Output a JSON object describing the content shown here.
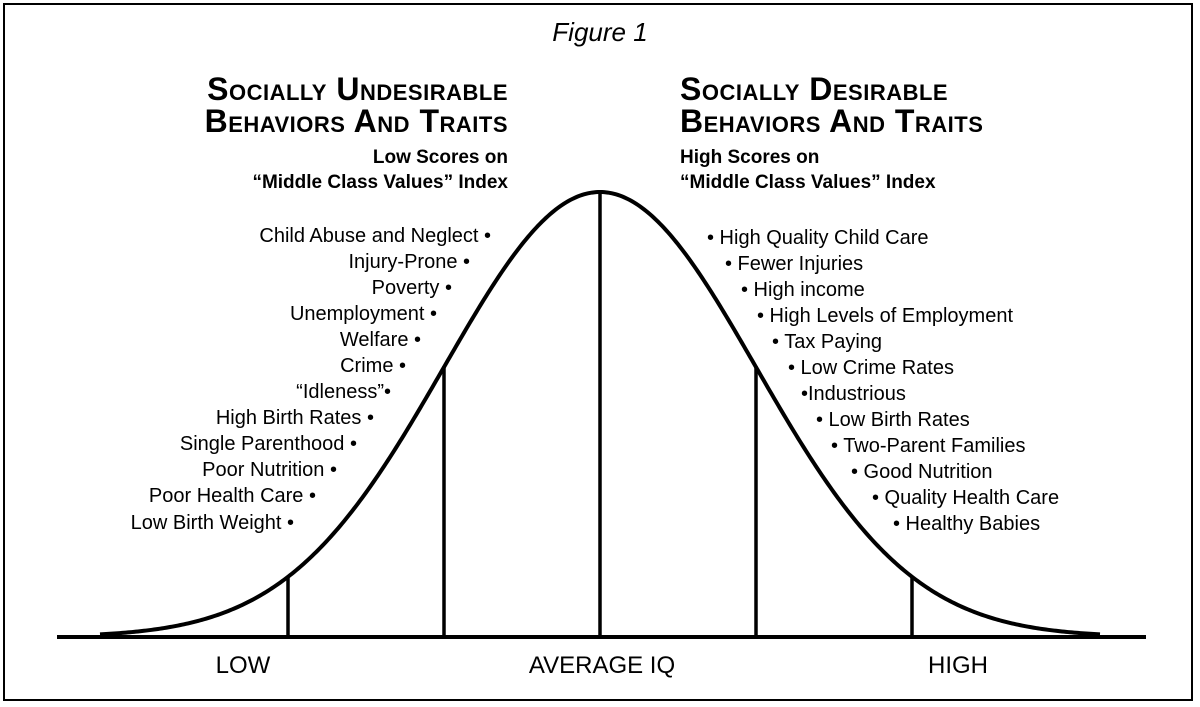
{
  "figure_title": "Figure 1",
  "left_heading": {
    "line1": "Socially Undesirable",
    "line2": "Behaviors And Traits",
    "sub1": "Low Scores on",
    "sub2": "“Middle Class Values” Index"
  },
  "right_heading": {
    "line1": "Socially Desirable",
    "line2": "Behaviors And Traits",
    "sub1": "High Scores on",
    "sub2": "“Middle Class Values” Index"
  },
  "left_traits": [
    "Child Abuse and Neglect •",
    "Injury-Prone •",
    "Poverty •",
    "Unemployment •",
    "Welfare •",
    "Crime •",
    "“Idleness”•",
    "High Birth Rates •",
    "Single Parenthood •",
    "Poor Nutrition •",
    "Poor Health Care •",
    "Low Birth Weight •"
  ],
  "right_traits": [
    "• High Quality Child Care",
    "• Fewer Injuries",
    "• High income",
    "• High Levels of Employment",
    "• Tax Paying",
    "• Low Crime Rates",
    "•Industrious",
    "• Low Birth Rates",
    "• Two-Parent Families",
    "• Good Nutrition",
    "• Quality Health Care",
    "• Healthy Babies"
  ],
  "axis_labels": {
    "low": "LOW",
    "average": "AVERAGE IQ",
    "high": "HIGH"
  },
  "curve": {
    "type": "normal distribution",
    "mean": 0,
    "sd": 1,
    "division_lines_sd": [
      -2,
      -1,
      0,
      1,
      2
    ]
  }
}
